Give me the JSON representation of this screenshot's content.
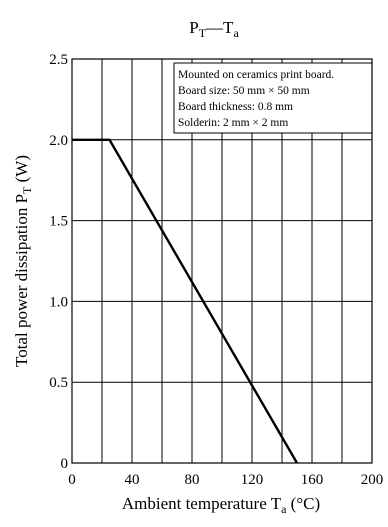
{
  "chart_data": {
    "type": "line",
    "title": {
      "main": "P",
      "main_sub": "T",
      "sep": "—",
      "second": "T",
      "second_sub": "a"
    },
    "xlabel": {
      "text": "Ambient temperature  T",
      "sub": "a",
      "unit": " (°C)"
    },
    "ylabel": {
      "text": "Total power dissipation  P",
      "sub": "T",
      "unit": " (W)"
    },
    "xlim": [
      0,
      200
    ],
    "ylim": [
      0,
      2.5
    ],
    "x_ticks": [
      0,
      40,
      80,
      120,
      160,
      200
    ],
    "x_tick_labels": [
      "0",
      "40",
      "80",
      "120",
      "160",
      "200"
    ],
    "x_grid_step": 20,
    "y_ticks": [
      0,
      0.5,
      1.0,
      1.5,
      2.0,
      2.5
    ],
    "y_tick_labels": [
      "0",
      "0.5",
      "1.0",
      "1.5",
      "2.0",
      "2.5"
    ],
    "grid": true,
    "series": [
      {
        "x": [
          0,
          25,
          150
        ],
        "y": [
          2.0,
          2.0,
          0
        ]
      }
    ],
    "annotation": [
      "Mounted on ceramics print board.",
      "Board size: 50 mm × 50 mm",
      "Board thickness: 0.8 mm",
      "Solderin: 2 mm × 2 mm"
    ],
    "annotation_placement": "top-right"
  }
}
